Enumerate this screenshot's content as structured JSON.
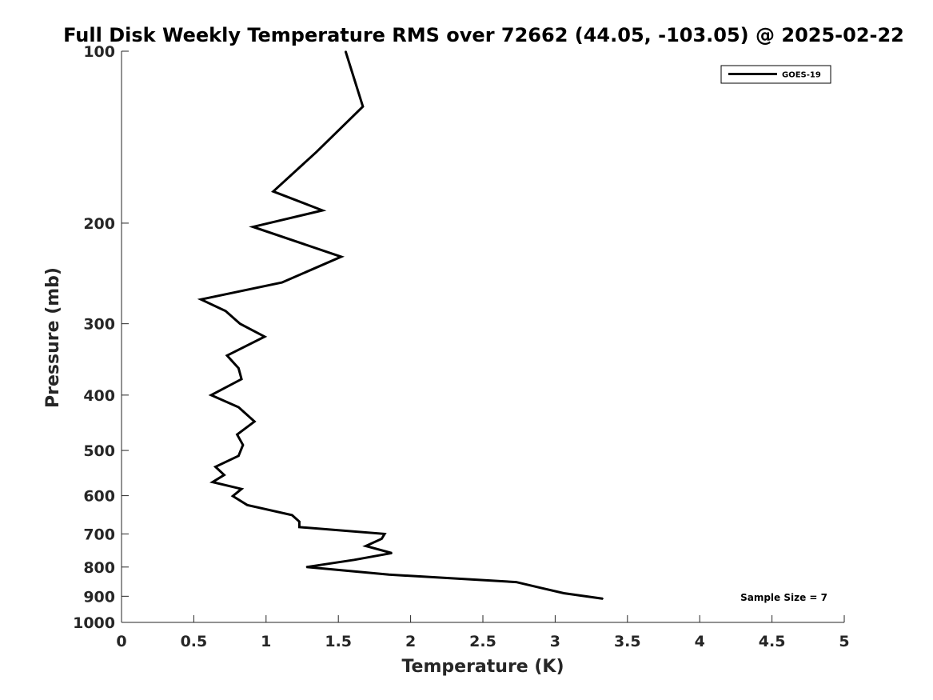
{
  "chart_data": {
    "type": "line",
    "title": "Full Disk Weekly Temperature RMS over 72662 (44.05, -103.05) @ 2025-02-22",
    "xlabel": "Temperature (K)",
    "ylabel": "Pressure (mb)",
    "xlim": [
      0,
      5
    ],
    "ylim": [
      100,
      1000
    ],
    "y_scale": "log",
    "y_reversed": true,
    "x_ticks": [
      "0",
      "0.5",
      "1",
      "1.5",
      "2",
      "2.5",
      "3",
      "3.5",
      "4",
      "4.5",
      "5"
    ],
    "y_ticks": [
      "100",
      "200",
      "300",
      "400",
      "500",
      "600",
      "700",
      "800",
      "900",
      "1000"
    ],
    "grid": false,
    "legend_position": "top-right",
    "annotation": "Sample Size = 7",
    "series": [
      {
        "name": "GOES-19",
        "color": "#000000",
        "points": [
          [
            1.55,
            100
          ],
          [
            1.67,
            125
          ],
          [
            1.35,
            150
          ],
          [
            1.05,
            176
          ],
          [
            1.39,
            190
          ],
          [
            0.91,
            203
          ],
          [
            1.52,
            229
          ],
          [
            1.11,
            254
          ],
          [
            0.55,
            272
          ],
          [
            0.72,
            285
          ],
          [
            0.82,
            300
          ],
          [
            0.99,
            316
          ],
          [
            0.73,
            341
          ],
          [
            0.81,
            359
          ],
          [
            0.83,
            375
          ],
          [
            0.62,
            400
          ],
          [
            0.81,
            420
          ],
          [
            0.92,
            445
          ],
          [
            0.8,
            469
          ],
          [
            0.84,
            489
          ],
          [
            0.81,
            511
          ],
          [
            0.65,
            534
          ],
          [
            0.71,
            552
          ],
          [
            0.63,
            568
          ],
          [
            0.83,
            584
          ],
          [
            0.77,
            601
          ],
          [
            0.87,
            623
          ],
          [
            1.18,
            649
          ],
          [
            1.23,
            666
          ],
          [
            1.23,
            681
          ],
          [
            1.82,
            700
          ],
          [
            1.8,
            714
          ],
          [
            1.69,
            735
          ],
          [
            1.87,
            756
          ],
          [
            1.61,
            777
          ],
          [
            1.28,
            800
          ],
          [
            1.85,
            825
          ],
          [
            2.73,
            850
          ],
          [
            2.9,
            870
          ],
          [
            3.06,
            889
          ],
          [
            3.33,
            909
          ]
        ]
      }
    ]
  }
}
